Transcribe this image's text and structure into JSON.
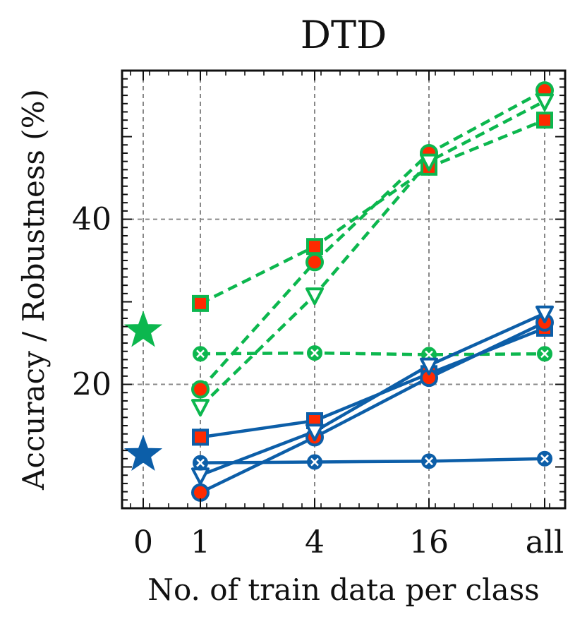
{
  "chart_data": {
    "type": "line",
    "title": "DTD",
    "xlabel": "No. of train data per class",
    "ylabel": "Accuracy / Robustness (%)",
    "categories": [
      "0",
      "1",
      "4",
      "16",
      "all"
    ],
    "y_ticks": [
      20,
      40
    ],
    "ylim": [
      5,
      58
    ],
    "grid": true,
    "zero_shot": [
      {
        "name": "green-star",
        "x": "0",
        "y": 26.5,
        "color": "#0cb74e"
      },
      {
        "name": "blue-star",
        "x": "0",
        "y": 11.5,
        "color": "#0c5ea8"
      }
    ],
    "series": [
      {
        "name": "green-square",
        "color": "#0cb74e",
        "style": "dashed",
        "marker": "square",
        "x": [
          "1",
          "4",
          "16",
          "all"
        ],
        "values": [
          29.8,
          36.7,
          46.3,
          52.0
        ]
      },
      {
        "name": "green-circle",
        "color": "#0cb74e",
        "style": "dashed",
        "marker": "circle",
        "x": [
          "1",
          "4",
          "16",
          "all"
        ],
        "values": [
          19.4,
          34.8,
          48.0,
          55.6
        ]
      },
      {
        "name": "green-triangle",
        "color": "#0cb74e",
        "style": "dashed",
        "marker": "triangle",
        "x": [
          "1",
          "4",
          "16",
          "all"
        ],
        "values": [
          17.3,
          30.8,
          47.0,
          54.3
        ]
      },
      {
        "name": "green-x",
        "color": "#0cb74e",
        "style": "dashed",
        "marker": "x",
        "x": [
          "1",
          "4",
          "16",
          "all"
        ],
        "values": [
          23.7,
          23.8,
          23.6,
          23.7
        ]
      },
      {
        "name": "blue-square",
        "color": "#0c5ea8",
        "style": "solid",
        "marker": "square",
        "x": [
          "1",
          "4",
          "16",
          "all"
        ],
        "values": [
          13.6,
          15.6,
          21.3,
          26.8
        ]
      },
      {
        "name": "blue-circle",
        "color": "#0c5ea8",
        "style": "solid",
        "marker": "circle",
        "x": [
          "1",
          "4",
          "16",
          "all"
        ],
        "values": [
          6.9,
          13.6,
          20.8,
          27.5
        ]
      },
      {
        "name": "blue-triangle",
        "color": "#0c5ea8",
        "style": "solid",
        "marker": "triangle",
        "x": [
          "1",
          "4",
          "16",
          "all"
        ],
        "values": [
          9.0,
          14.3,
          22.3,
          28.6
        ]
      },
      {
        "name": "blue-x",
        "color": "#0c5ea8",
        "style": "solid",
        "marker": "x",
        "x": [
          "1",
          "4",
          "16",
          "all"
        ],
        "values": [
          10.5,
          10.6,
          10.7,
          11.0
        ]
      }
    ]
  }
}
